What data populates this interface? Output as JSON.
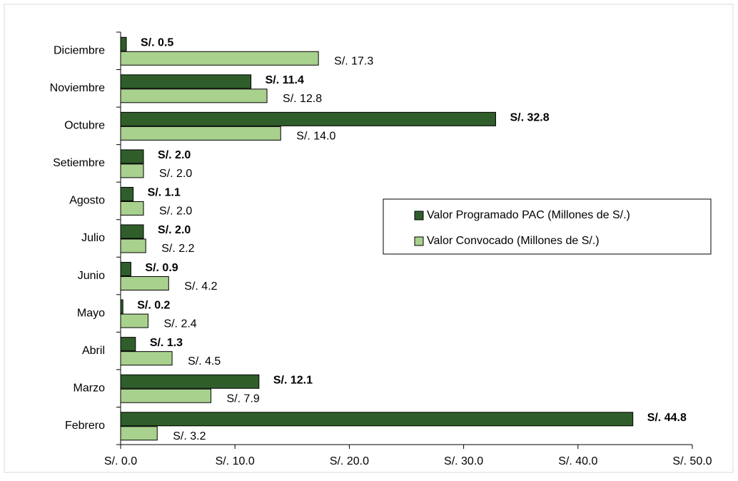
{
  "chart_data": {
    "type": "hbar",
    "categories": [
      "Febrero",
      "Marzo",
      "Abril",
      "Mayo",
      "Junio",
      "Julio",
      "Agosto",
      "Setiembre",
      "Octubre",
      "Noviembre",
      "Diciembre"
    ],
    "series": [
      {
        "name": "Valor Programado PAC (Millones de S/.)",
        "color": "#2f5e2a",
        "values": [
          44.8,
          12.1,
          1.3,
          0.2,
          0.9,
          2.0,
          1.1,
          2.0,
          32.8,
          11.4,
          0.5
        ],
        "value_labels": [
          "S/. 44.8",
          "S/. 12.1",
          "S/. 1.3",
          "S/. 0.2",
          "S/. 0.9",
          "S/. 2.0",
          "S/. 1.1",
          "S/. 2.0",
          "S/. 32.8",
          "S/. 11.4",
          "S/. 0.5"
        ]
      },
      {
        "name": "Valor Convocado (Millones de S/.)",
        "color": "#a9d18e",
        "values": [
          3.2,
          7.9,
          4.5,
          2.4,
          4.2,
          2.2,
          2.0,
          2.0,
          14.0,
          12.8,
          17.3
        ],
        "value_labels": [
          "S/. 3.2",
          "S/. 7.9",
          "S/. 4.5",
          "S/. 2.4",
          "S/. 4.2",
          "S/. 2.2",
          "S/. 2.0",
          "S/. 2.0",
          "S/. 14.0",
          "S/. 12.8",
          "S/. 17.3"
        ]
      }
    ],
    "xlim": [
      0,
      50
    ],
    "xticks": [
      {
        "value": 0,
        "label": "S/. 0.0"
      },
      {
        "value": 10,
        "label": "S/. 10.0"
      },
      {
        "value": 20,
        "label": "S/. 20.0"
      },
      {
        "value": 30,
        "label": "S/. 30.0"
      },
      {
        "value": 40,
        "label": "S/. 40.0"
      },
      {
        "value": 50,
        "label": "S/. 50.0"
      }
    ],
    "legend": "right"
  }
}
